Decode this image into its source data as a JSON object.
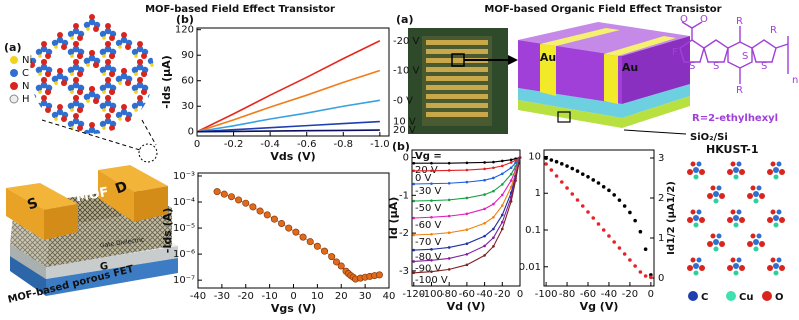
{
  "left_title": "MOF-based Field Effect Transistor",
  "right_title": "MOF-based Organic Field Effect Transistor",
  "panel_labels": [
    "(a)",
    "(b)",
    "(a)",
    "(b)"
  ],
  "mof_legend": [
    "Ni",
    "C",
    "N",
    "H"
  ],
  "device": {
    "source": "S",
    "drain": "D",
    "channel": "MOF",
    "dielectric": "Gate Dielectric",
    "gate": "G",
    "caption": "MOF-based porous FET"
  },
  "ofet": {
    "electrodes": [
      "Au",
      "Au"
    ],
    "side_chain": "R=2-ethylhexyl",
    "substrate": "SiO₂/Si",
    "mof": "HKUST-1",
    "legend": [
      "C",
      "Cu",
      "O"
    ],
    "molecule_labels": [
      "O",
      "O",
      "F",
      "S",
      "S",
      "S",
      "S",
      "R",
      "R",
      "R",
      "n"
    ]
  },
  "chart_data": [
    {
      "type": "line",
      "xlabel": "Vds (V)",
      "ylabel": "-Ids (μA)",
      "x": [
        0,
        -0.2,
        -0.4,
        -0.6,
        -0.8,
        -1.0
      ],
      "xlim": [
        0,
        -1.05
      ],
      "xticks": [
        0,
        -0.2,
        -0.4,
        -0.6,
        -0.8,
        {
          "value": -1,
          "label": "-1.0"
        }
      ],
      "ylim": [
        -5,
        122
      ],
      "yticks": [
        0,
        30,
        60,
        90,
        120
      ],
      "series": [
        {
          "name": "-20 V",
          "color": "#e8281e",
          "values": [
            0,
            21,
            43,
            64,
            86,
            107
          ]
        },
        {
          "name": "-10 V",
          "color": "#f07c1a",
          "values": [
            0,
            14,
            29,
            43,
            58,
            72
          ]
        },
        {
          "name": "-0 V",
          "color": "#3aa0e0",
          "values": [
            0,
            7,
            15,
            22,
            30,
            37
          ]
        },
        {
          "name": "10 V",
          "color": "#1f3fb0",
          "values": [
            0,
            2.4,
            4.8,
            7.2,
            9.6,
            12
          ]
        },
        {
          "name": "20 V",
          "color": "#0a1060",
          "values": [
            0,
            0.4,
            0.8,
            1.2,
            1.6,
            2
          ]
        }
      ]
    },
    {
      "type": "scatter",
      "xlabel": "Vgs (V)",
      "ylabel": "-Ids (A)",
      "ylog": true,
      "xlim": [
        -40,
        40
      ],
      "xticks": [
        -40,
        -30,
        -20,
        -10,
        0,
        10,
        20,
        30,
        40
      ],
      "ylim": [
        5e-08,
        0.0013
      ],
      "yticks": [
        {
          "value": 0.001,
          "label": "10⁻³"
        },
        {
          "value": 0.0001,
          "label": "10⁻⁴"
        },
        {
          "value": 1e-05,
          "label": "10⁻⁵"
        },
        {
          "value": 1e-06,
          "label": "10⁻⁶"
        },
        {
          "value": 1e-07,
          "label": "10⁻⁷"
        }
      ],
      "x": [
        -32,
        -29,
        -26,
        -23,
        -20,
        -17,
        -14,
        -11,
        -8,
        -5,
        -2,
        1,
        4,
        7,
        10,
        13,
        16,
        18,
        20,
        22,
        23,
        24,
        25,
        26,
        28,
        30,
        32,
        34,
        36
      ],
      "series": [
        {
          "color": "#e06a1a",
          "values": [
            0.00025,
            0.0002,
            0.00016,
            0.00012,
            9e-05,
            6.5e-05,
            4.5e-05,
            3.2e-05,
            2.2e-05,
            1.5e-05,
            1e-05,
            7e-06,
            4.5e-06,
            3e-06,
            2e-06,
            1.3e-06,
            8e-07,
            5e-07,
            3.5e-07,
            2.2e-07,
            1.8e-07,
            1.5e-07,
            1.3e-07,
            1.1e-07,
            1.2e-07,
            1.3e-07,
            1.4e-07,
            1.5e-07,
            1.6e-07
          ]
        }
      ]
    },
    {
      "type": "line",
      "xlabel": "Vd (V)",
      "ylabel": "Id (μA)",
      "legend_title": "Vg =",
      "x": [
        -120,
        -100,
        -80,
        -60,
        -40,
        -30,
        -20,
        -10,
        -5,
        0
      ],
      "xlim": [
        -122,
        0
      ],
      "xticks": [
        -120,
        -100,
        -80,
        -60,
        -40,
        -20,
        0
      ],
      "ylim": [
        -3.4,
        0.2
      ],
      "yticks": [
        0,
        -1,
        -2,
        -3
      ],
      "series": [
        {
          "name": "20 V",
          "color": "#000000",
          "values": [
            -0.15,
            -0.15,
            -0.15,
            -0.14,
            -0.13,
            -0.12,
            -0.09,
            -0.06,
            -0.03,
            0
          ]
        },
        {
          "name": "0 V",
          "color": "#e02020",
          "values": [
            -0.35,
            -0.35,
            -0.34,
            -0.33,
            -0.3,
            -0.27,
            -0.22,
            -0.13,
            -0.07,
            0
          ]
        },
        {
          "name": "-30 V",
          "color": "#2060e0",
          "values": [
            -0.7,
            -0.69,
            -0.68,
            -0.65,
            -0.6,
            -0.54,
            -0.43,
            -0.27,
            -0.14,
            0
          ]
        },
        {
          "name": "-50 V",
          "color": "#10a040",
          "values": [
            -1.15,
            -1.14,
            -1.12,
            -1.07,
            -0.98,
            -0.89,
            -0.71,
            -0.44,
            -0.23,
            0
          ]
        },
        {
          "name": "-60 V",
          "color": "#e020c0",
          "values": [
            -1.6,
            -1.58,
            -1.55,
            -1.49,
            -1.36,
            -1.23,
            -0.99,
            -0.61,
            -0.32,
            0
          ]
        },
        {
          "name": "-70 V",
          "color": "#f08010",
          "values": [
            -2.05,
            -2.03,
            -1.99,
            -1.91,
            -1.74,
            -1.58,
            -1.27,
            -0.78,
            -0.41,
            0
          ]
        },
        {
          "name": "-80 V",
          "color": "#2030a0",
          "values": [
            -2.45,
            -2.43,
            -2.38,
            -2.28,
            -2.08,
            -1.89,
            -1.52,
            -0.93,
            -0.49,
            0
          ]
        },
        {
          "name": "-90 V",
          "color": "#8020a0",
          "values": [
            -2.75,
            -2.72,
            -2.67,
            -2.56,
            -2.34,
            -2.12,
            -1.71,
            -1.05,
            -0.55,
            0
          ]
        },
        {
          "name": "-100 V",
          "color": "#802020",
          "values": [
            -3.05,
            -3.02,
            -2.96,
            -2.84,
            -2.59,
            -2.35,
            -1.89,
            -1.16,
            -0.61,
            0
          ]
        }
      ]
    },
    {
      "type": "scatter",
      "xlabel": "Vg (V)",
      "y2label": "Id1/2 (μA1/2)",
      "ylog": true,
      "x": [
        -100,
        -95,
        -90,
        -85,
        -80,
        -75,
        -70,
        -65,
        -60,
        -55,
        -50,
        -45,
        -40,
        -35,
        -30,
        -25,
        -20,
        -15,
        -10,
        -5,
        0
      ],
      "xlim": [
        -102,
        3
      ],
      "xticks": [
        -100,
        -80,
        -60,
        -40,
        -20,
        0
      ],
      "ylim": [
        0.003,
        15
      ],
      "yticks": [
        10,
        1,
        0.1,
        0.01
      ],
      "y2lim": [
        -0.2,
        3.2
      ],
      "y2ticks": [
        0,
        1,
        2,
        3
      ],
      "series": [
        {
          "color": "#000000",
          "values": [
            9,
            8,
            7.2,
            6.3,
            5.5,
            4.7,
            4,
            3.3,
            2.8,
            2.3,
            1.9,
            1.5,
            1.2,
            0.9,
            0.65,
            0.45,
            0.3,
            0.18,
            0.09,
            0.03,
            0.006
          ]
        },
        {
          "color": "#e8202a",
          "axis": "y2",
          "values": [
            2.85,
            2.7,
            2.55,
            2.4,
            2.25,
            2.1,
            1.95,
            1.8,
            1.65,
            1.5,
            1.35,
            1.2,
            1.05,
            0.9,
            0.75,
            0.6,
            0.45,
            0.3,
            0.15,
            0.05,
            0.02
          ]
        }
      ]
    }
  ]
}
